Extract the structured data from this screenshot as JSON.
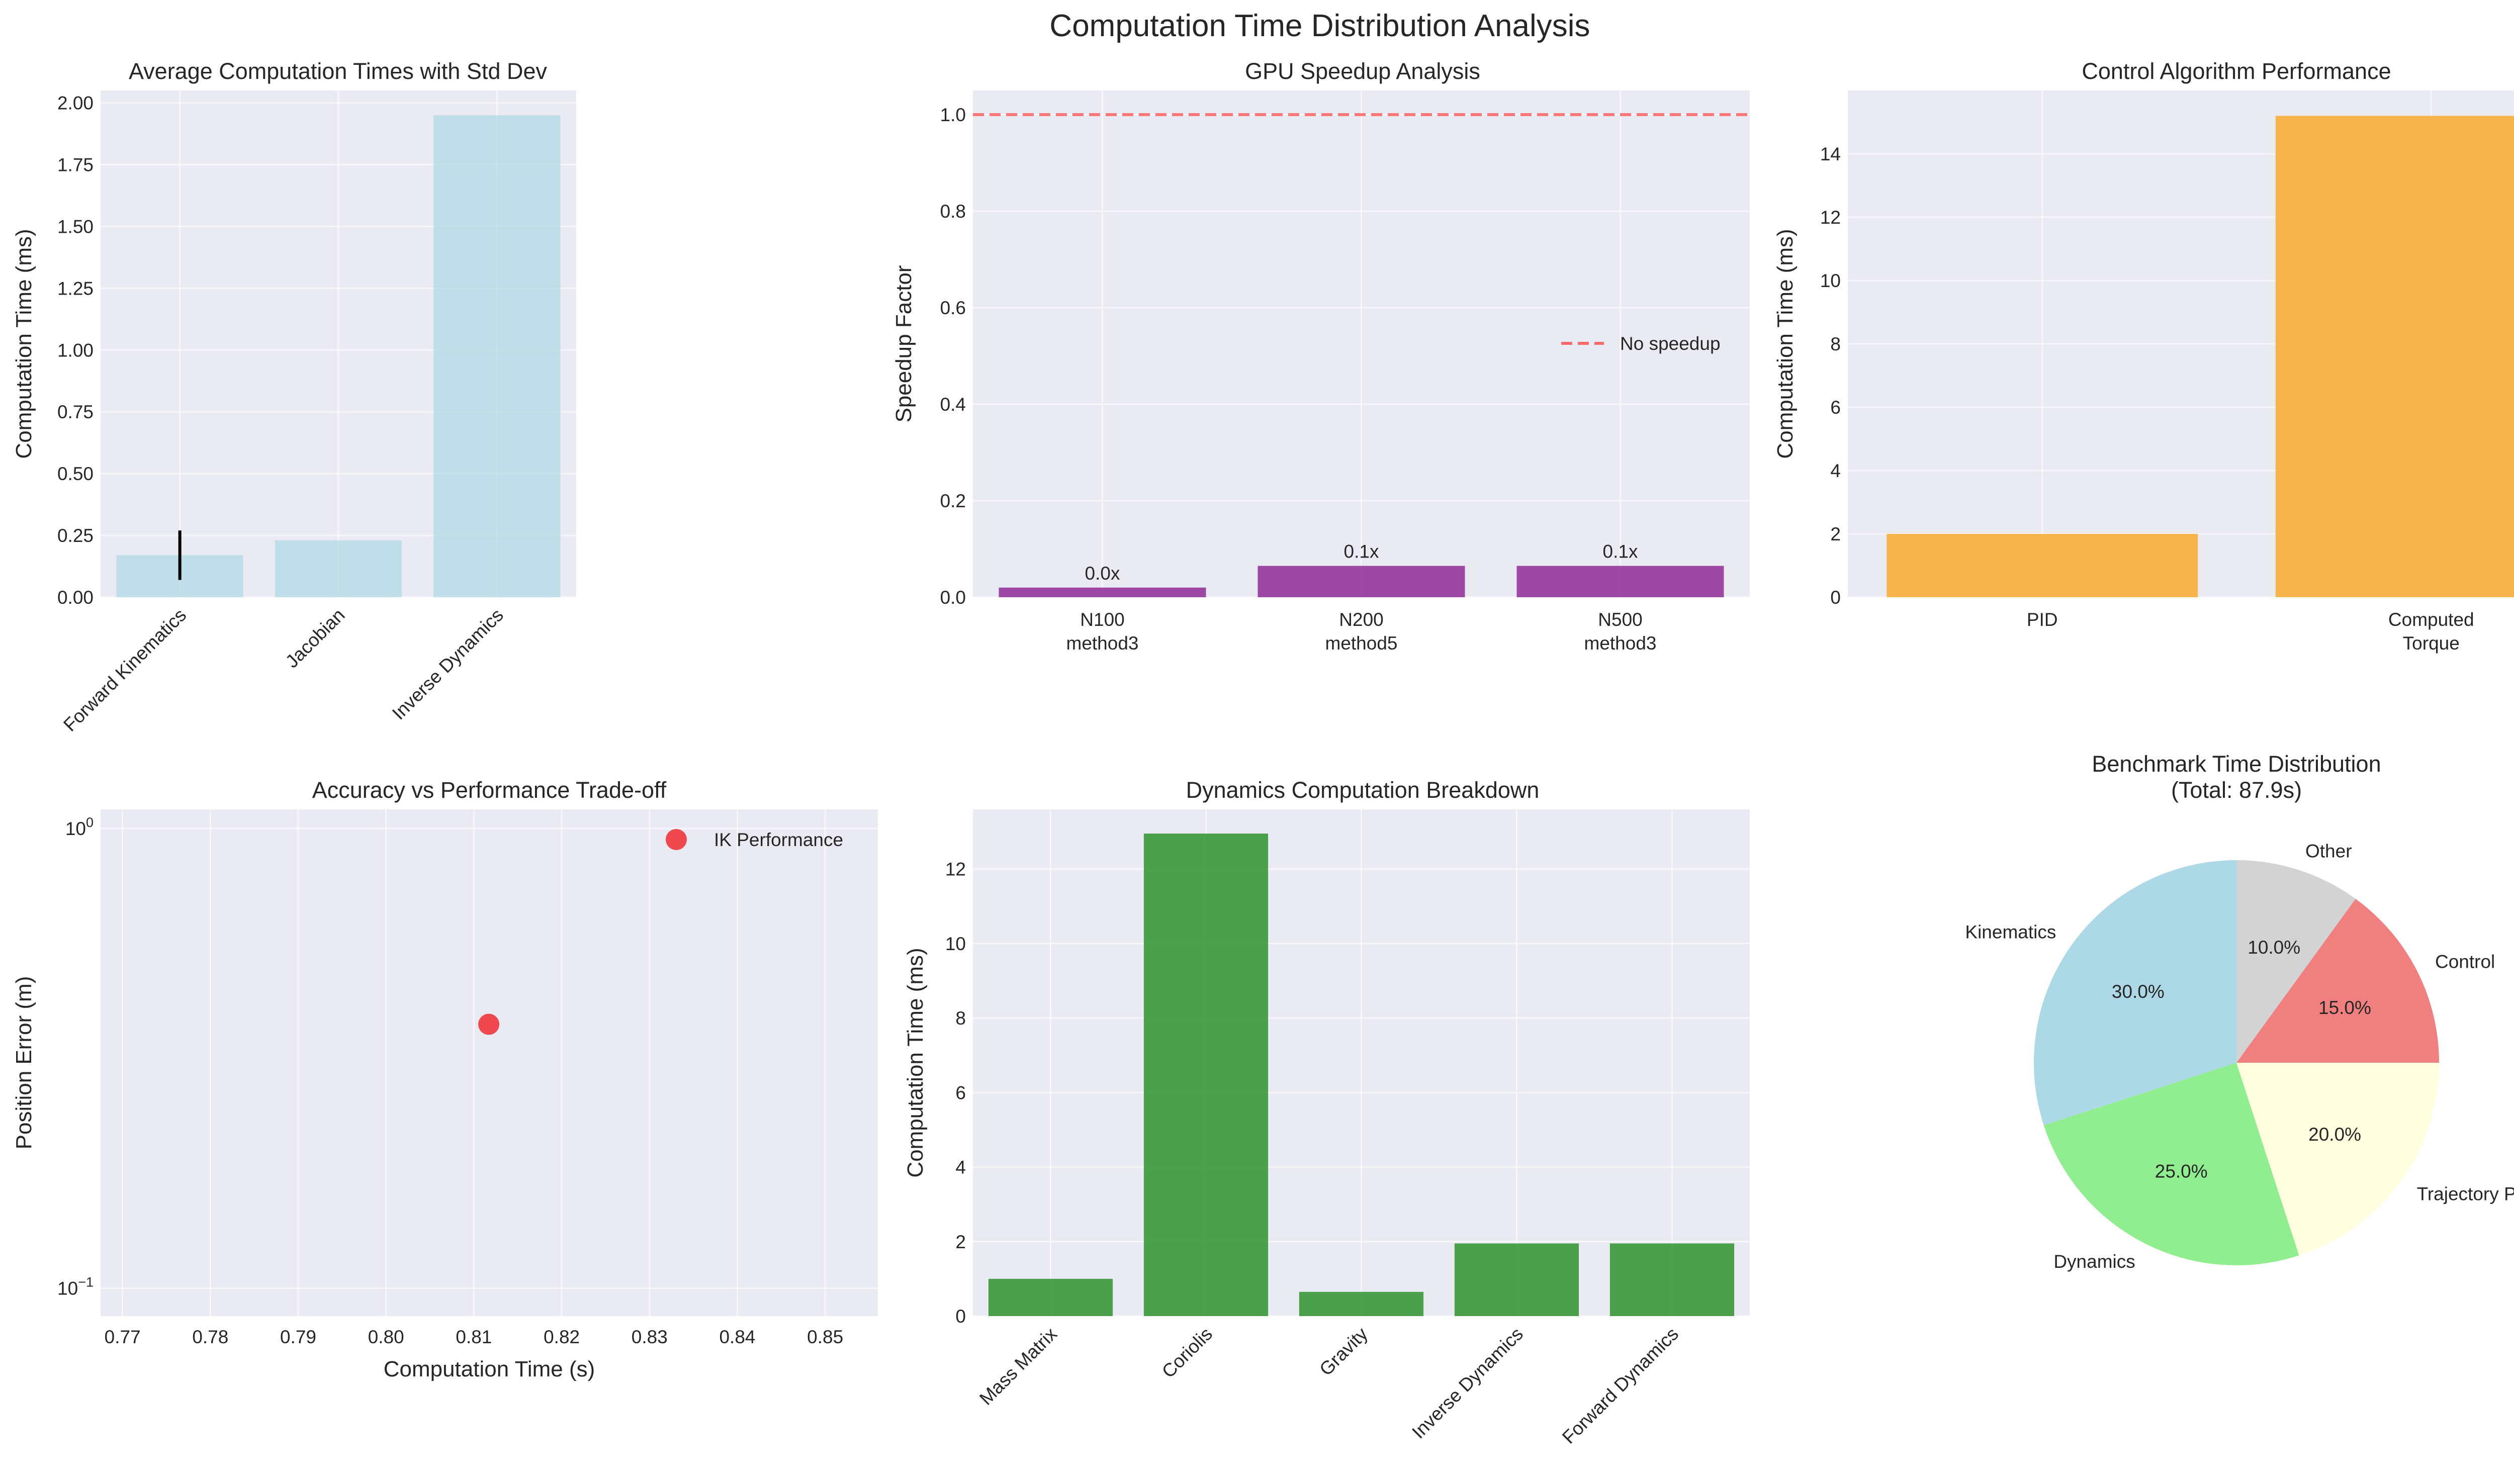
{
  "figure_title": "Computation Time Distribution Analysis",
  "chart_data": [
    {
      "id": "avg",
      "type": "bar",
      "title": "Average Computation Times with Std Dev",
      "xlabel": "",
      "ylabel": "Computation Time (ms)",
      "categories": [
        "Forward Kinematics",
        "Jacobian",
        "Inverse Dynamics"
      ],
      "values": [
        0.17,
        0.23,
        1.95
      ],
      "errors": [
        0.1,
        0,
        0
      ],
      "ylim": [
        0,
        2.05
      ],
      "yticks": [
        "0.00",
        "0.25",
        "0.50",
        "0.75",
        "1.00",
        "1.25",
        "1.50",
        "1.75",
        "2.00"
      ],
      "color": "#add8e6",
      "grid": true
    },
    {
      "id": "gpu",
      "type": "bar",
      "title": "GPU Speedup Analysis",
      "xlabel": "",
      "ylabel": "Speedup Factor",
      "categories": [
        [
          "N100",
          "method3"
        ],
        [
          "N200",
          "method5"
        ],
        [
          "N500",
          "method3"
        ]
      ],
      "values": [
        0.02,
        0.065,
        0.065
      ],
      "data_labels": [
        "0.0x",
        "0.1x",
        "0.1x"
      ],
      "reference_line": {
        "y": 1.0,
        "label": "No speedup",
        "color": "#ff6b6b"
      },
      "ylim": [
        0,
        1.05
      ],
      "yticks": [
        "0.0",
        "0.2",
        "0.4",
        "0.6",
        "0.8",
        "1.0"
      ],
      "legend_position": "center-right",
      "color": "#8e2c96",
      "grid": true
    },
    {
      "id": "ctrl",
      "type": "bar",
      "title": "Control Algorithm Performance",
      "xlabel": "",
      "ylabel": "Computation Time (ms)",
      "categories": [
        [
          "PID"
        ],
        [
          "Computed",
          "Torque"
        ]
      ],
      "values": [
        2.0,
        15.2
      ],
      "ylim": [
        0,
        16
      ],
      "yticks": [
        "0",
        "2",
        "4",
        "6",
        "8",
        "10",
        "12",
        "14"
      ],
      "color": "#f6af3a",
      "grid": true
    },
    {
      "id": "acc",
      "type": "scatter",
      "title": "Accuracy vs Performance Trade-off",
      "xlabel": "Computation Time (s)",
      "ylabel": "Position Error (m)",
      "points": [
        {
          "x": 0.8117,
          "y": 0.375
        }
      ],
      "series_name": "IK Performance",
      "xlim": [
        0.7675,
        0.856
      ],
      "xticks": [
        "0.77",
        "0.78",
        "0.79",
        "0.80",
        "0.81",
        "0.82",
        "0.83",
        "0.84",
        "0.85"
      ],
      "yscale": "log",
      "ylim": [
        0.087,
        1.1
      ],
      "yticks": [
        {
          "base": "10",
          "exp": "0"
        },
        {
          "base": "10",
          "exp": "−1"
        }
      ],
      "legend_position": "top-right",
      "color": "#f0363c",
      "grid": true
    },
    {
      "id": "dyn",
      "type": "bar",
      "title": "Dynamics Computation Breakdown",
      "xlabel": "",
      "ylabel": "Computation Time (ms)",
      "categories": [
        "Mass Matrix",
        "Coriolis",
        "Gravity",
        "Inverse Dynamics",
        "Forward Dynamics"
      ],
      "values": [
        1.0,
        12.95,
        0.65,
        1.95,
        1.95
      ],
      "ylim": [
        0,
        13.6
      ],
      "yticks": [
        "0",
        "2",
        "4",
        "6",
        "8",
        "10",
        "12"
      ],
      "color": "#3a983a",
      "grid": true
    },
    {
      "id": "pie",
      "type": "pie",
      "title": "Benchmark Time Distribution",
      "subtitle": "(Total: 87.9s)",
      "slices": [
        {
          "label": "Kinematics",
          "value": 30.0,
          "pct": "30.0%",
          "color": "#add8e6"
        },
        {
          "label": "Dynamics",
          "value": 25.0,
          "pct": "25.0%",
          "color": "#90ee90"
        },
        {
          "label": "Trajectory Planning",
          "value": 20.0,
          "pct": "20.0%",
          "color": "#ffffe0"
        },
        {
          "label": "Control",
          "value": 15.0,
          "pct": "15.0%",
          "color": "#f08080"
        },
        {
          "label": "Other",
          "value": 10.0,
          "pct": "10.0%",
          "color": "#d3d3d3"
        }
      ],
      "start_angle_deg": 90,
      "direction": "counterclockwise"
    }
  ]
}
